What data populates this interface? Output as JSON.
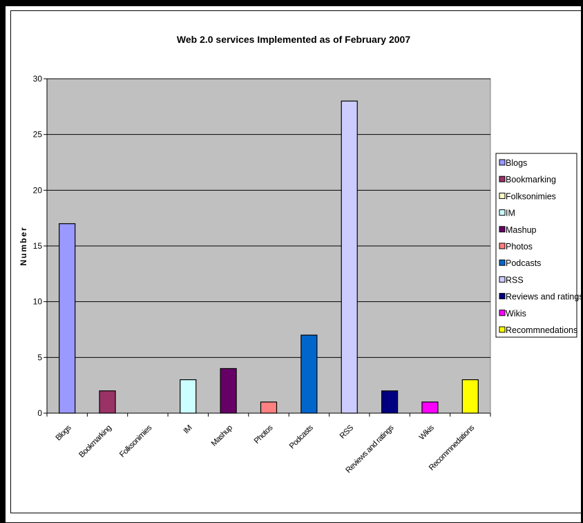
{
  "chart_data": {
    "type": "bar",
    "title": "Web 2.0 services Implemented as of February 2007",
    "ylabel": "Number",
    "xlabel": "",
    "ylim": [
      0,
      30
    ],
    "yticks": [
      0,
      5,
      10,
      15,
      20,
      25,
      30
    ],
    "grid": true,
    "legend_position": "right",
    "plot_background": "#c0c0c0",
    "categories": [
      "Blogs",
      "Bookmarking",
      "Folksonimies",
      "IM",
      "Mashup",
      "Photos",
      "Podcasts",
      "RSS",
      "Reviews and ratings",
      "Wikis",
      "Recommnedations"
    ],
    "values": [
      17,
      2,
      0,
      3,
      4,
      1,
      7,
      28,
      2,
      1,
      3
    ],
    "colors": [
      "#9999ff",
      "#993366",
      "#ffffcc",
      "#ccffff",
      "#660066",
      "#ff8080",
      "#0066cc",
      "#ccccff",
      "#000080",
      "#ff00ff",
      "#ffff00"
    ],
    "legend": [
      "Blogs",
      "Bookmarking",
      "Folksonimies",
      "IM",
      "Mashup",
      "Photos",
      "Podcasts",
      "RSS",
      "Reviews and ratings",
      "Wikis",
      "Recommnedations"
    ]
  }
}
